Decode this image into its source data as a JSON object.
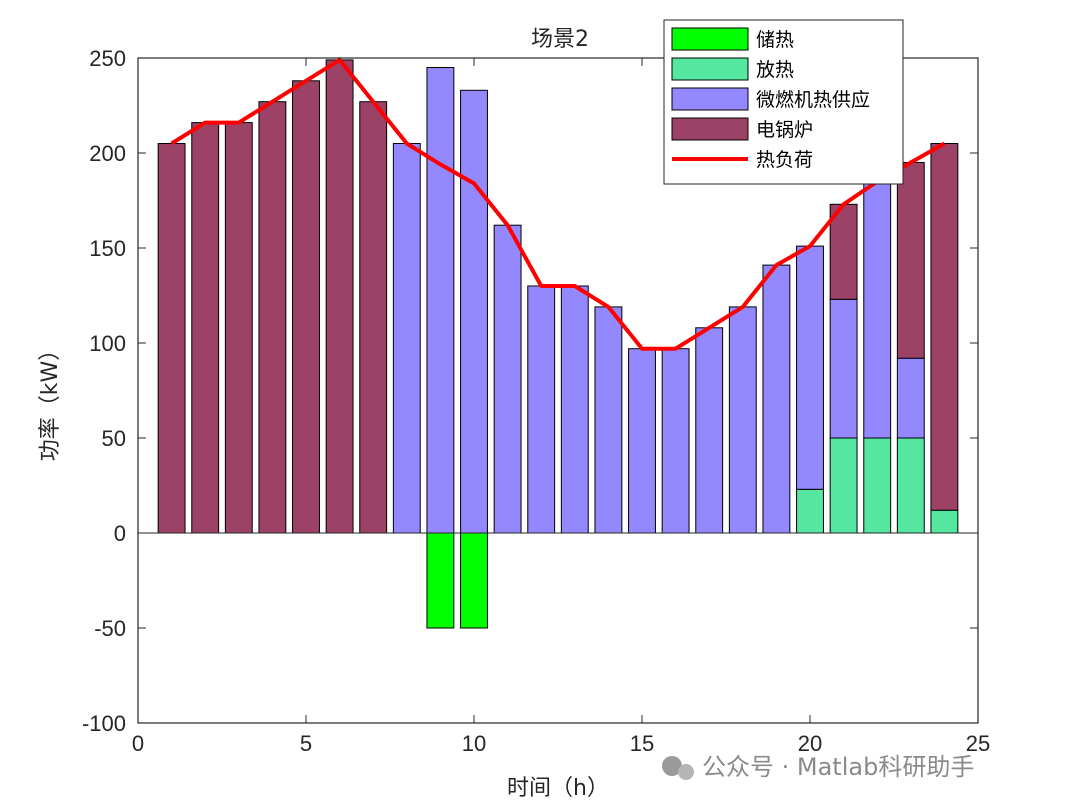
{
  "chart_data": {
    "type": "bar",
    "stacked": true,
    "title": "场景2",
    "xlabel": "时间（h）",
    "ylabel": "功率（kW）",
    "xlim": [
      0,
      25
    ],
    "ylim": [
      -100,
      250
    ],
    "xticks": [
      0,
      5,
      10,
      15,
      20,
      25
    ],
    "yticks": [
      -100,
      -50,
      0,
      50,
      100,
      150,
      200,
      250
    ],
    "grid": false,
    "legend_position": "top-right",
    "x": [
      1,
      2,
      3,
      4,
      5,
      6,
      7,
      8,
      9,
      10,
      11,
      12,
      13,
      14,
      15,
      16,
      17,
      18,
      19,
      20,
      21,
      22,
      23,
      24
    ],
    "series": [
      {
        "name": "储热",
        "color": "#00ff00",
        "values": [
          0,
          0,
          0,
          0,
          0,
          0,
          0,
          0,
          -50,
          -50,
          0,
          0,
          0,
          0,
          0,
          0,
          0,
          0,
          0,
          0,
          0,
          0,
          0,
          0
        ]
      },
      {
        "name": "放热",
        "color": "#55e6a0",
        "values": [
          0,
          0,
          0,
          0,
          0,
          0,
          0,
          0,
          0,
          0,
          0,
          0,
          0,
          0,
          0,
          0,
          0,
          0,
          0,
          23,
          50,
          50,
          50,
          12
        ]
      },
      {
        "name": "微燃机热供应",
        "color": "#9488ff",
        "values": [
          0,
          0,
          0,
          0,
          0,
          0,
          0,
          205,
          245,
          233,
          162,
          130,
          130,
          119,
          97,
          97,
          108,
          119,
          141,
          128,
          73,
          135,
          42,
          0
        ]
      },
      {
        "name": "电锅炉",
        "color": "#9b4266",
        "values": [
          205,
          216,
          216,
          227,
          238,
          249,
          227,
          0,
          0,
          0,
          0,
          0,
          0,
          0,
          0,
          0,
          0,
          0,
          0,
          0,
          50,
          0,
          103,
          193
        ]
      }
    ],
    "line": {
      "name": "热负荷",
      "color": "#ff0000",
      "values": [
        205,
        216,
        216,
        227,
        238,
        249,
        227,
        205,
        194,
        184,
        162,
        130,
        130,
        119,
        97,
        97,
        108,
        119,
        141,
        151,
        173,
        185,
        195,
        205
      ]
    }
  },
  "watermark": "公众号 · Matlab科研助手"
}
